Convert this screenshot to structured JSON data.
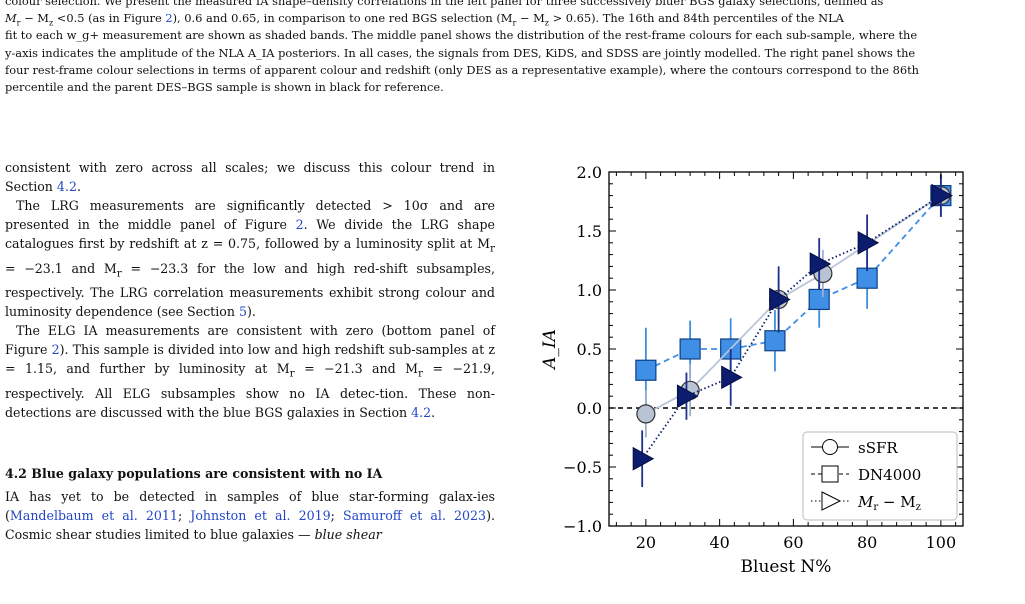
{
  "caption": {
    "line1": "colour selection. We present the measured IA shape–density correlations in the left panel for three successively bluer BGS galaxy selections, defined as",
    "line2a": "M",
    "line2b": " − M",
    "line2c": " <0.5 (as in Figure ",
    "line2_link": "2",
    "line2d": "), 0.6 and 0.65, in comparison to one red BGS selection (M",
    "line2e": " − M",
    "line2f": " > 0.65). The 16th and 84th percentiles of the NLA",
    "line3": "fit to each w_g+ measurement are shown as shaded bands. The middle panel shows the distribution of the rest-frame colours for each sub-sample, where the",
    "line4": "y-axis indicates the amplitude of the NLA A_IA posteriors. In all cases, the signals from DES, KiDS, and SDSS are jointly modelled. The right panel shows the",
    "line5": "four rest-frame colour selections in terms of apparent colour and redshift (only DES as a representative example), where the contours correspond to the 86th",
    "line6": "percentile and the parent DES–BGS sample is shown in black for reference."
  },
  "text": {
    "p1a": "consistent with zero across all scales; we discuss this colour trend in Section ",
    "p1_link": "4.2",
    "p1b": ".",
    "p2a": "The LRG measurements are significantly detected > 10σ and are presented in the middle panel of Figure ",
    "p2_link1": "2",
    "p2b": ". We divide the LRG shape catalogues first by redshift at z = 0.75, followed by a luminosity split at M",
    "p2c": " = −23.1 and M",
    "p2d": " = −23.3 for the low and high red-shift subsamples, respectively. The LRG correlation measurements exhibit strong colour and luminosity dependence (see Section ",
    "p2_link2": "5",
    "p2e": ").",
    "p3a": "The ELG IA measurements are consistent with zero (bottom panel of Figure ",
    "p3_link1": "2",
    "p3b": "). This sample is divided into low and high redshift sub-samples at z = 1.15, and further by luminosity at M",
    "p3c": " = −21.3 and M",
    "p3d": " = −21.9, respectively. All ELG subsamples show no IA detec-tion. These non-detections are discussed with the blue BGS galaxies in Section ",
    "p3_link2": "4.2",
    "p3e": ".",
    "heading": "4.2 Blue galaxy populations are consistent with no IA",
    "p4a": "IA has yet to be detected in samples of blue star-forming galax-ies (",
    "p4_link1": "Mandelbaum et al. 2011",
    "p4b": "; ",
    "p4_link2": "Johnston et al. 2019",
    "p4c": "; ",
    "p4_link3": "Samuroff et al. 2023",
    "p4d": "). Cosmic shear studies limited to blue galaxies — ",
    "p4_em": "blue shear",
    "sub_r": "r",
    "sub_z": "z"
  },
  "chart_data": {
    "type": "scatter",
    "xlabel": "Bluest N%",
    "ylabel": "A_IA",
    "xlim": [
      10,
      106
    ],
    "ylim": [
      -1.0,
      2.0
    ],
    "xticks": [
      "20",
      "40",
      "60",
      "80",
      "100"
    ],
    "yticks": [
      "−1.0",
      "−0.5",
      "0.0",
      "0.5",
      "1.0",
      "1.5",
      "2.0"
    ],
    "reference_line": 0.0,
    "legend_position": "lower-right",
    "series": [
      {
        "name": "sSFR",
        "marker": "circle",
        "line": "solid",
        "color": "#b6c3d6",
        "x": [
          20,
          32,
          56,
          68,
          100
        ],
        "y": [
          -0.05,
          0.15,
          0.92,
          1.14,
          1.8
        ],
        "err": [
          0.2,
          0.22,
          0.2,
          0.2,
          0.18
        ]
      },
      {
        "name": "DN4000",
        "marker": "square",
        "line": "dashed",
        "color": "#3f8fe6",
        "x": [
          20,
          32,
          43,
          55,
          67,
          80,
          100
        ],
        "y": [
          0.32,
          0.5,
          0.5,
          0.57,
          0.92,
          1.1,
          1.8
        ],
        "err": [
          0.36,
          0.24,
          0.26,
          0.26,
          0.24,
          0.26,
          0.18
        ]
      },
      {
        "name": "Mr − Mz",
        "marker": "triangle-right",
        "line": "dotted",
        "color": "#0c1d6e",
        "x": [
          19,
          31,
          43,
          56,
          67,
          80,
          100
        ],
        "y": [
          -0.43,
          0.1,
          0.26,
          0.92,
          1.22,
          1.4,
          1.8
        ],
        "err": [
          0.24,
          0.2,
          0.24,
          0.28,
          0.22,
          0.24,
          0.18
        ]
      }
    ]
  },
  "legend": {
    "item1": "sSFR",
    "item2": "DN4000",
    "item3a": "M",
    "item3b": " − M"
  }
}
